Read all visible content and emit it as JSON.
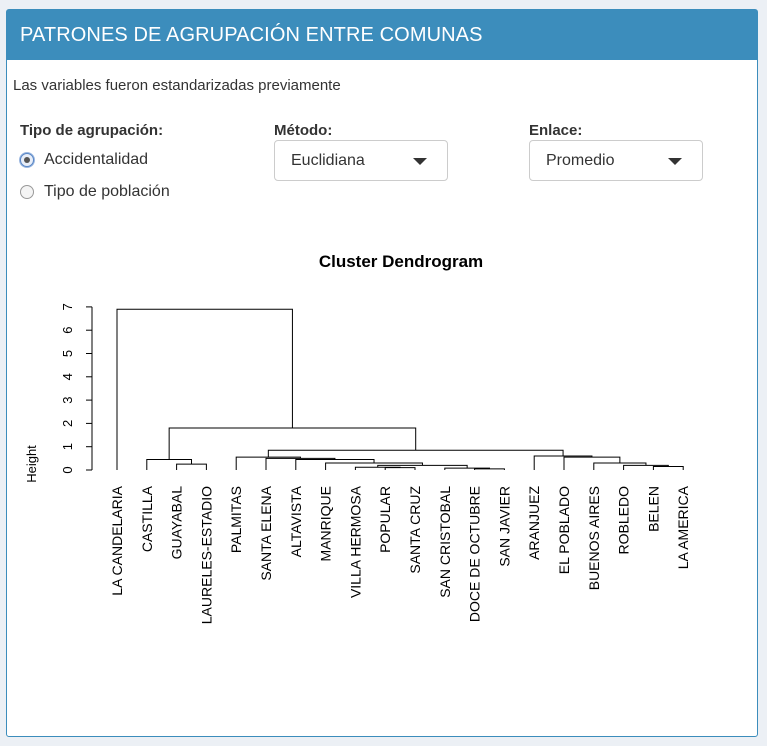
{
  "panel": {
    "title": "PATRONES DE AGRUPACIÓN ENTRE COMUNAS",
    "note": "Las variables fueron estandarizadas previamente"
  },
  "grouping": {
    "label": "Tipo de agrupación:",
    "options": [
      {
        "label": "Accidentalidad",
        "checked": true
      },
      {
        "label": "Tipo de población",
        "checked": false
      }
    ]
  },
  "method": {
    "label": "Método:",
    "value": "Euclidiana"
  },
  "linkage": {
    "label": "Enlace:",
    "value": "Promedio"
  },
  "chart_data": {
    "type": "dendrogram",
    "title": "Cluster Dendrogram",
    "ylabel": "Height",
    "ylim": [
      0,
      7
    ],
    "yticks": [
      0,
      1,
      2,
      3,
      4,
      5,
      6,
      7
    ],
    "leaves": [
      "LA CANDELARIA",
      "CASTILLA",
      "GUAYABAL",
      "LAURELES-ESTADIO",
      "PALMITAS",
      "SANTA ELENA",
      "ALTAVISTA",
      "MANRIQUE",
      "VILLA HERMOSA",
      "POPULAR",
      "SANTA CRUZ",
      "SAN CRISTOBAL",
      "DOCE DE OCTUBRE",
      "SAN JAVIER",
      "ARANJUEZ",
      "EL POBLADO",
      "BUENOS AIRES",
      "ROBLEDO",
      "BELEN",
      "LA AMERICA"
    ],
    "merges": [
      {
        "a": 12,
        "b": 13,
        "height": 0.05
      },
      {
        "a": 11,
        "b": "m1",
        "height": 0.08
      },
      {
        "a": 9,
        "b": 10,
        "height": 0.1
      },
      {
        "a": 8,
        "b": "m3",
        "height": 0.12
      },
      {
        "a": "m4",
        "b": "m2",
        "height": 0.2
      },
      {
        "a": 18,
        "b": 19,
        "height": 0.15
      },
      {
        "a": 17,
        "b": "m6",
        "height": 0.2
      },
      {
        "a": 2,
        "b": 3,
        "height": 0.25
      },
      {
        "a": 7,
        "b": "m5",
        "height": 0.3
      },
      {
        "a": 16,
        "b": "m7",
        "height": 0.3
      },
      {
        "a": 1,
        "b": "m8",
        "height": 0.45
      },
      {
        "a": 6,
        "b": "m9",
        "height": 0.45
      },
      {
        "a": 5,
        "b": "m12",
        "height": 0.5
      },
      {
        "a": 15,
        "b": "m10",
        "height": 0.55
      },
      {
        "a": 14,
        "b": "m14",
        "height": 0.6
      },
      {
        "a": 4,
        "b": "m13",
        "height": 0.55
      },
      {
        "a": "m16",
        "b": "m15",
        "height": 0.85
      },
      {
        "a": "m11",
        "b": "m17",
        "height": 1.8
      },
      {
        "a": 0,
        "b": "m18",
        "height": 6.9
      }
    ]
  }
}
